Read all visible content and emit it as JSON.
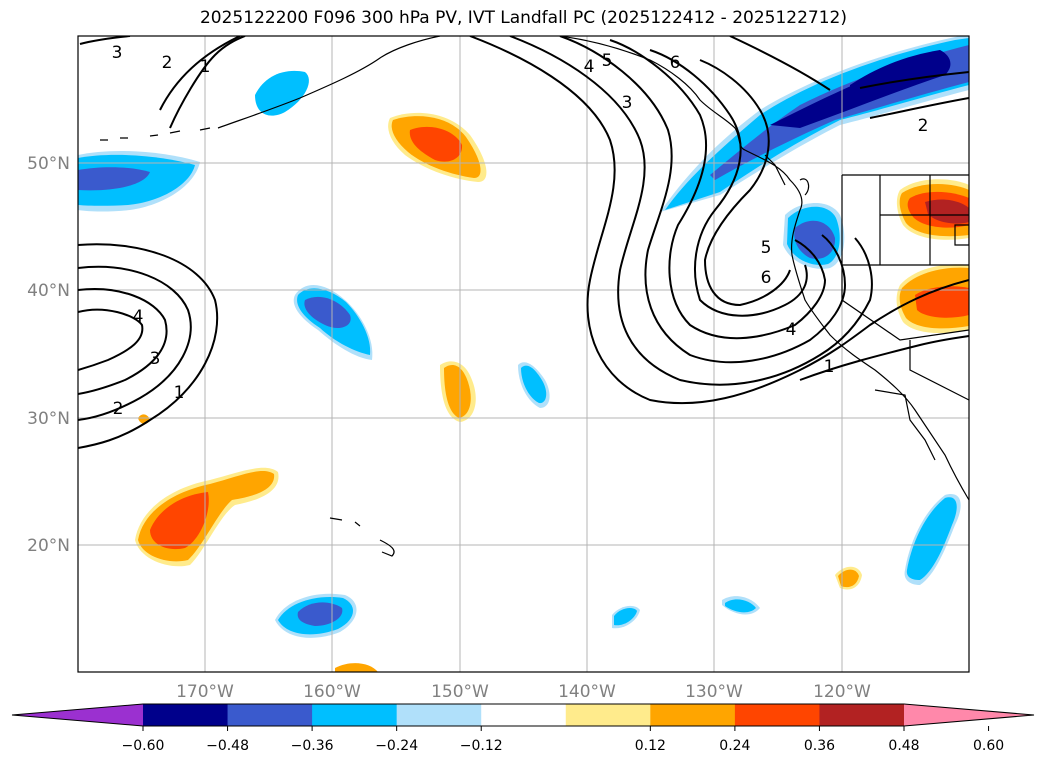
{
  "title": "2025122200 F096 300 hPa PV, IVT Landfall PC (2025122412 - 2025122712)",
  "lat_labels": [
    "50°N",
    "40°N",
    "30°N",
    "20°N"
  ],
  "lon_labels": [
    "170°W",
    "160°W",
    "150°W",
    "140°W",
    "130°W",
    "120°W"
  ],
  "contour_labels": [
    "3",
    "2",
    "1",
    "5",
    "4",
    "6",
    "3",
    "2",
    "5",
    "6",
    "4",
    "1",
    "3",
    "2",
    "1",
    "4"
  ],
  "colorbar": {
    "labels": [
      "−0.60",
      "−0.48",
      "−0.36",
      "−0.24",
      "−0.12",
      "0.12",
      "0.24",
      "0.36",
      "0.48",
      "0.60"
    ],
    "colors": [
      "#9b30d0",
      "#00008b",
      "#3a5acd",
      "#00bfff",
      "#b0e0fa",
      "#ffffff",
      "#ffeb8c",
      "#ffa500",
      "#ff4500",
      "#b22222",
      "#ff88aa"
    ]
  },
  "map_data": {
    "extent": {
      "lon_min": -180,
      "lon_max": -110,
      "lat_min": 10,
      "lat_max": 60
    },
    "gridlines_lon": [
      -170,
      -160,
      -150,
      -140,
      -130,
      -120
    ],
    "gridlines_lat": [
      20,
      30,
      40,
      50
    ]
  }
}
